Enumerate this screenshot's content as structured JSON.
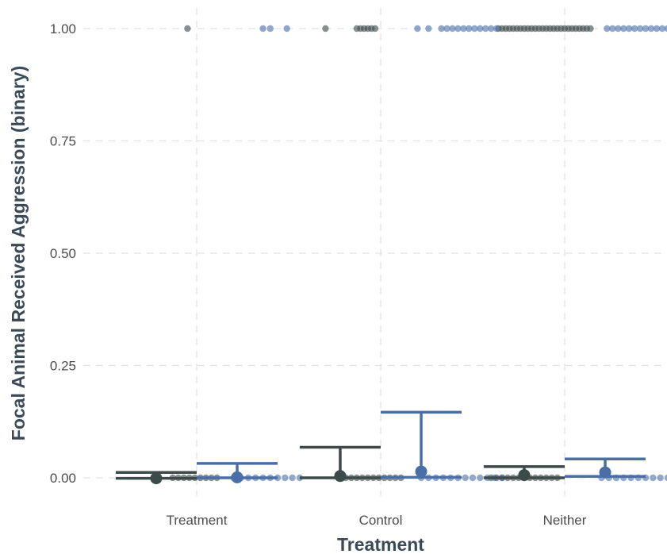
{
  "chart_data": {
    "type": "scatter",
    "title": "",
    "xlabel": "Treatment",
    "ylabel": "Focal Animal Received Aggression (binary)",
    "categories": [
      "Treatment",
      "Control",
      "Neither"
    ],
    "yticks": [
      "0.00",
      "0.25",
      "0.50",
      "0.75",
      "1.00"
    ],
    "ylim": [
      -0.02,
      1.02
    ],
    "grid": true,
    "legend": "none",
    "colors": {
      "series_a": "#3d4a4a",
      "series_b": "#4a6fa8",
      "grid": "#e3e3e3",
      "text": "#4d4d4d",
      "title": "#3b4a57"
    },
    "series": [
      {
        "estimates": [
          {
            "category": "Treatment",
            "mean": -0.001,
            "lower": -0.001,
            "upper": 0.012
          },
          {
            "category": "Control",
            "mean": 0.004,
            "lower": 0.0,
            "upper": 0.068
          },
          {
            "category": "Neither",
            "mean": 0.006,
            "lower": 0.0,
            "upper": 0.025
          }
        ],
        "points": [
          {
            "category": "Treatment",
            "y": 1,
            "offsets": [
              -0.05
            ]
          },
          {
            "category": "Treatment",
            "y": 0,
            "offsets": [
              -0.13,
              -0.1,
              -0.07,
              -0.04,
              -0.01,
              0.02,
              0.05,
              0.08,
              0.11
            ]
          },
          {
            "category": "Control",
            "y": 1,
            "offsets": [
              -0.3,
              -0.13,
              -0.11,
              -0.09,
              -0.07,
              -0.05,
              -0.03
            ]
          },
          {
            "category": "Control",
            "y": 0,
            "offsets": [
              -0.22,
              -0.19,
              -0.16,
              -0.13,
              -0.1,
              -0.07,
              -0.04,
              -0.01,
              0.02,
              0.05,
              0.08,
              0.11
            ]
          },
          {
            "category": "Neither",
            "y": 1,
            "offsets": [
              -0.36,
              -0.34,
              -0.32,
              -0.3,
              -0.28,
              -0.26,
              -0.24,
              -0.22,
              -0.2,
              -0.18,
              -0.16,
              -0.14,
              -0.12,
              -0.1,
              -0.08,
              -0.06,
              -0.04,
              -0.02,
              0.0,
              0.02,
              0.04,
              0.06,
              0.08,
              0.1,
              0.12,
              0.14
            ]
          },
          {
            "category": "Neither",
            "y": 0,
            "offsets": [
              -0.4,
              -0.37,
              -0.34,
              -0.31,
              -0.28,
              -0.25,
              -0.22,
              -0.19,
              -0.16,
              -0.13,
              -0.1,
              -0.07,
              -0.04
            ]
          }
        ]
      },
      {
        "estimates": [
          {
            "category": "Treatment",
            "mean": 0.001,
            "lower": 0.0,
            "upper": 0.032
          },
          {
            "category": "Control",
            "mean": 0.014,
            "lower": 0.001,
            "upper": 0.146
          },
          {
            "category": "Neither",
            "mean": 0.012,
            "lower": 0.003,
            "upper": 0.042
          }
        ],
        "points": [
          {
            "category": "Treatment",
            "y": 1,
            "offsets": [
              0.36,
              0.4,
              0.49
            ]
          },
          {
            "category": "Treatment",
            "y": 0,
            "offsets": [
              0.2,
              0.24,
              0.28,
              0.32,
              0.36,
              0.4,
              0.44,
              0.48,
              0.52,
              0.56
            ]
          },
          {
            "category": "Control",
            "y": 1,
            "offsets": [
              0.2,
              0.26,
              0.33,
              0.36,
              0.39,
              0.42,
              0.45,
              0.48,
              0.51,
              0.54,
              0.57,
              0.6,
              0.63
            ]
          },
          {
            "category": "Control",
            "y": 0,
            "offsets": [
              0.22,
              0.26,
              0.3,
              0.34,
              0.38,
              0.42,
              0.46,
              0.5,
              0.54,
              0.58,
              0.62,
              0.66
            ]
          },
          {
            "category": "Neither",
            "y": 1,
            "offsets": [
              0.23,
              0.26,
              0.29,
              0.32,
              0.35,
              0.38,
              0.41,
              0.44,
              0.47,
              0.5,
              0.53,
              0.56,
              0.59,
              0.62,
              0.65,
              0.68,
              0.71,
              0.74
            ]
          },
          {
            "category": "Neither",
            "y": 0,
            "offsets": [
              0.2,
              0.24,
              0.28,
              0.32,
              0.36,
              0.4,
              0.44,
              0.48,
              0.52,
              0.56,
              0.6,
              0.64
            ]
          }
        ]
      }
    ]
  }
}
